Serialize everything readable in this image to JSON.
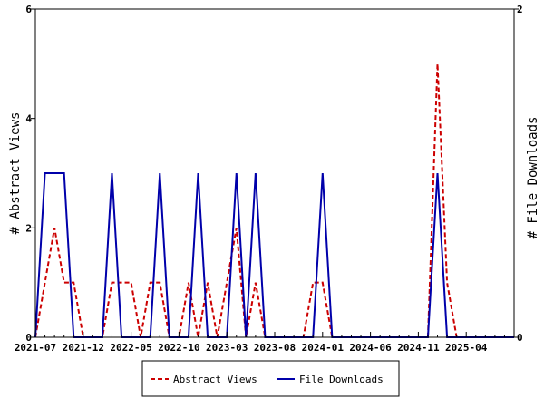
{
  "chart_data": {
    "type": "line",
    "ylabel_left": "# Abstract Views",
    "ylabel_right": "# File Downloads",
    "x_tick_labels": [
      "2021-07",
      "2021-12",
      "2022-05",
      "2022-10",
      "2023-03",
      "2023-08",
      "2024-01",
      "2024-06",
      "2024-11",
      "2025-04"
    ],
    "ylim_left": [
      0,
      6
    ],
    "yticks_left": [
      "0",
      "2",
      "4",
      "6"
    ],
    "ylim_right": [
      0,
      2
    ],
    "yticks_right": [
      "0",
      "2"
    ],
    "grid": false,
    "legend_position": "bottom",
    "x": [
      "2021-07",
      "2021-08",
      "2021-09",
      "2021-10",
      "2021-11",
      "2021-12",
      "2022-01",
      "2022-02",
      "2022-03",
      "2022-04",
      "2022-05",
      "2022-06",
      "2022-07",
      "2022-08",
      "2022-09",
      "2022-10",
      "2022-11",
      "2022-12",
      "2023-01",
      "2023-02",
      "2023-03",
      "2023-04",
      "2023-05",
      "2023-06",
      "2023-07",
      "2023-08",
      "2023-09",
      "2023-10",
      "2023-11",
      "2023-12",
      "2024-01",
      "2024-02",
      "2024-03",
      "2024-04",
      "2024-05",
      "2024-06",
      "2024-07",
      "2024-08",
      "2024-09",
      "2024-10",
      "2024-11",
      "2024-12",
      "2025-01",
      "2025-02",
      "2025-03",
      "2025-04",
      "2025-05",
      "2025-06",
      "2025-07",
      "2025-08",
      "2025-09"
    ],
    "series": [
      {
        "name": "Abstract Views",
        "axis": "left",
        "color": "#cc0000",
        "dash": "dashed",
        "values": [
          0,
          1,
          2,
          1,
          1,
          0,
          0,
          0,
          1,
          1,
          1,
          0,
          1,
          1,
          0,
          0,
          1,
          0,
          1,
          0,
          1,
          2,
          0,
          1,
          0,
          0,
          0,
          0,
          0,
          1,
          1,
          0,
          0,
          0,
          0,
          0,
          0,
          0,
          0,
          0,
          0,
          0,
          5,
          1,
          0,
          0,
          0,
          0,
          0,
          0,
          0
        ]
      },
      {
        "name": "File Downloads",
        "axis": "right",
        "color": "#0000aa",
        "dash": "solid",
        "values": [
          0,
          1,
          1,
          1,
          0,
          0,
          0,
          0,
          1,
          0,
          0,
          0,
          0,
          1,
          0,
          0,
          0,
          1,
          0,
          0,
          0,
          1,
          0,
          1,
          0,
          0,
          0,
          0,
          0,
          0,
          1,
          0,
          0,
          0,
          0,
          0,
          0,
          0,
          0,
          0,
          0,
          0,
          1,
          0,
          0,
          0,
          0,
          0,
          0,
          0,
          0
        ]
      }
    ]
  },
  "legend": {
    "abstract_views": "Abstract Views",
    "file_downloads": "File Downloads"
  }
}
